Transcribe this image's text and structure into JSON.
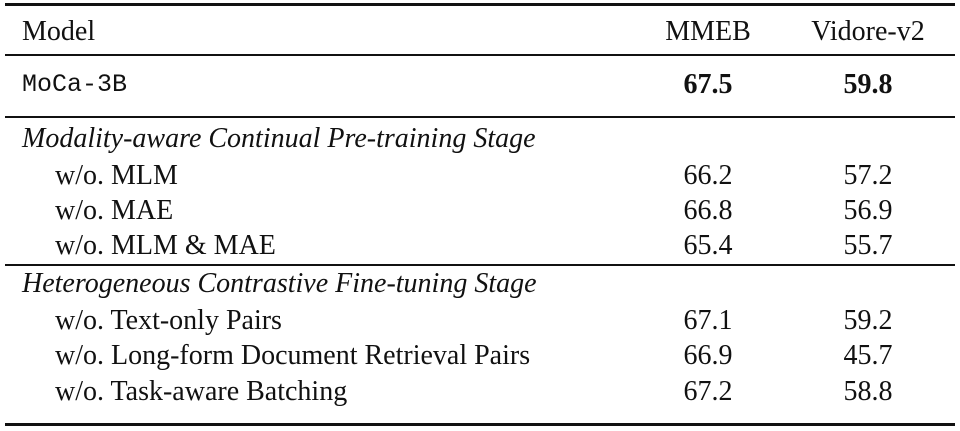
{
  "table": {
    "header": [
      "Model",
      "MMEB",
      "Vidore-v2"
    ],
    "main": {
      "model": "MoCa-3B",
      "values": [
        67.5,
        59.8
      ]
    },
    "sections": [
      {
        "title": "Modality-aware Continual Pre-training Stage",
        "rows": [
          {
            "model": "w/o. MLM",
            "values": [
              66.2,
              57.2
            ]
          },
          {
            "model": "w/o. MAE",
            "values": [
              66.8,
              56.9
            ]
          },
          {
            "model": "w/o. MLM & MAE",
            "values": [
              65.4,
              55.7
            ]
          }
        ]
      },
      {
        "title": "Heterogeneous Contrastive Fine-tuning Stage",
        "rows": [
          {
            "model": "w/o. Text-only Pairs",
            "values": [
              67.1,
              59.2
            ]
          },
          {
            "model": "w/o. Long-form Document Retrieval Pairs",
            "values": [
              66.9,
              45.7
            ]
          },
          {
            "model": "w/o. Task-aware Batching",
            "values": [
              67.2,
              58.8
            ]
          }
        ]
      }
    ]
  }
}
